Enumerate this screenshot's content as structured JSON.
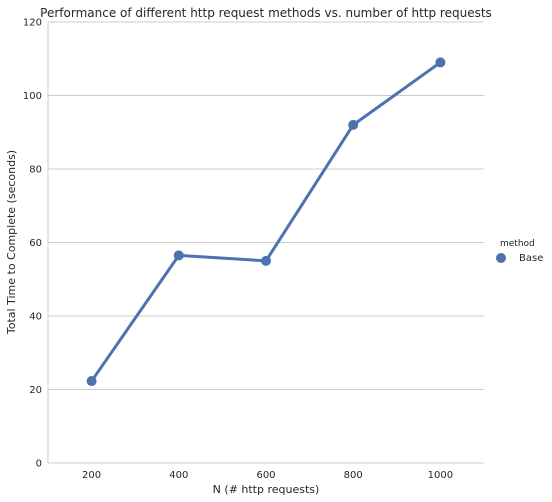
{
  "chart_data": {
    "type": "line",
    "title": "Performance of different http request methods vs. number of http requests",
    "xlabel": "N (# http requests)",
    "ylabel": "Total Time to Complete (seconds)",
    "categories": [
      "200",
      "400",
      "600",
      "800",
      "1000"
    ],
    "ylim": [
      0,
      120
    ],
    "yticks": [
      "0",
      "20",
      "40",
      "60",
      "80",
      "100",
      "120"
    ],
    "grid": "horizontal",
    "legend": {
      "title": "method",
      "placement": "right"
    },
    "series": [
      {
        "name": "Base",
        "color": "#4c72b0",
        "values": [
          22.3,
          56.5,
          55.0,
          92.0,
          109.0
        ]
      }
    ]
  }
}
